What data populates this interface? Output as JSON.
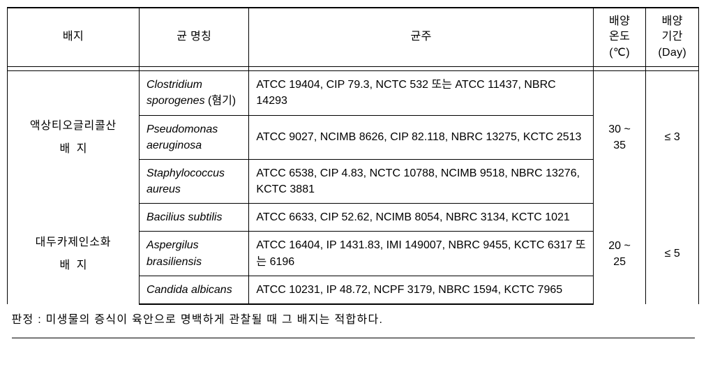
{
  "headers": {
    "medium": "배지",
    "species": "균 명칭",
    "strain": "균주",
    "temp_line1": "배양",
    "temp_line2": "온도",
    "temp_line3": "(℃)",
    "period_line1": "배양",
    "period_line2": "기간",
    "period_line3": "(Day)"
  },
  "groups": [
    {
      "medium_line1": "액상티오글리콜산",
      "medium_line2": "배지",
      "temp": "30 ~ 35",
      "period": "≤ 3",
      "rows": [
        {
          "species": "Clostridium sporogenes",
          "species_note": " (혐기)",
          "strain": "ATCC 19404, CIP 79.3, NCTC 532 또는 ATCC 11437, NBRC 14293"
        },
        {
          "species": "Pseudomonas aeruginosa",
          "species_note": "",
          "strain": "ATCC 9027, NCIMB 8626, CIP 82.118, NBRC 13275, KCTC 2513"
        },
        {
          "species": "Staphylococcus aureus",
          "species_note": "",
          "strain": "ATCC 6538, CIP 4.83, NCTC 10788, NCIMB 9518, NBRC 13276, KCTC 3881"
        }
      ]
    },
    {
      "medium_line1": "대두카제인소화",
      "medium_line2": "배지",
      "temp": "20 ~ 25",
      "period": "≤ 5",
      "rows": [
        {
          "species": "Bacilius subtilis",
          "species_note": "",
          "strain": "ATCC 6633, CIP 52.62, NCIMB 8054, NBRC 3134, KCTC 1021"
        },
        {
          "species": "Aspergilus brasiliensis",
          "species_note": "",
          "strain": "ATCC 16404, IP 1431.83, IMI 149007, NBRC 9455, KCTC 6317 또는 6196"
        },
        {
          "species": "Candida albicans",
          "species_note": "",
          "strain": "ATCC 10231, IP 48.72, NCPF 3179, NBRC 1594, KCTC 7965"
        }
      ]
    }
  ],
  "footer": "판정 : 미생물의 증식이 육안으로 명백하게 관찰될 때 그 배지는 적합하다.",
  "colors": {
    "border": "#000000",
    "background": "#ffffff",
    "text": "#000000"
  },
  "typography": {
    "font_family": "Malgun Gothic",
    "header_fontsize": 16,
    "cell_fontsize": 16
  },
  "column_widths": {
    "medium": 180,
    "name": 150,
    "strain": 470,
    "temp": 72,
    "period": 72
  }
}
